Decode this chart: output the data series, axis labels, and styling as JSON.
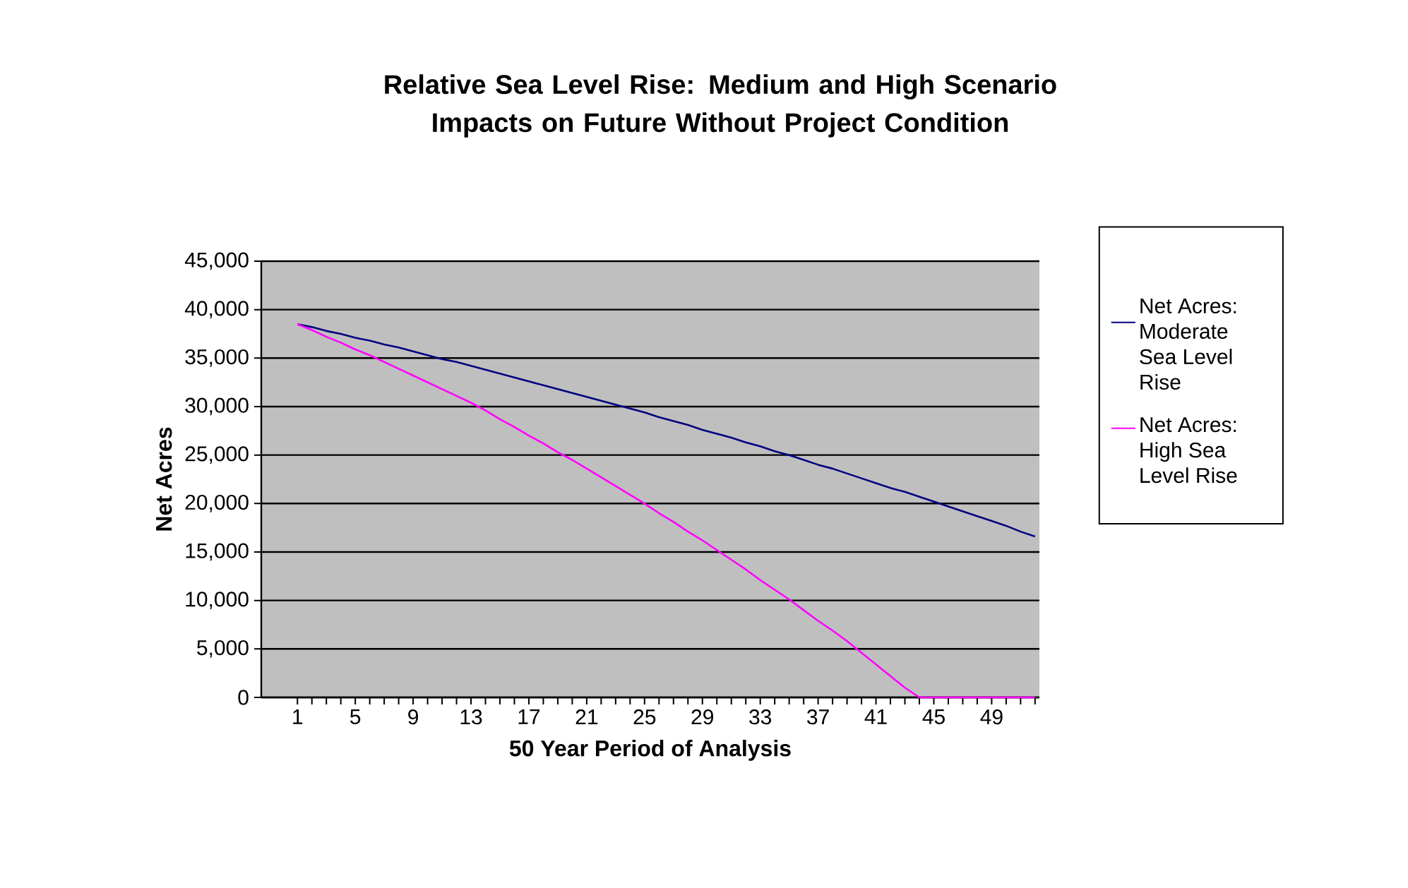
{
  "chart_data": {
    "type": "line",
    "title": "Relative Sea Level Rise: Medium and High Scenario Impacts on Future Without Project Condition",
    "xlabel": "50 Year Period of Analysis",
    "ylabel": "Net Acres",
    "categories": [
      "1",
      null,
      null,
      null,
      "5",
      null,
      null,
      null,
      "9",
      null,
      null,
      null,
      "13",
      null,
      null,
      null,
      "17",
      null,
      null,
      null,
      "21",
      null,
      null,
      null,
      "25",
      null,
      null,
      null,
      "29",
      null,
      null,
      null,
      "33",
      null,
      null,
      null,
      "37",
      null,
      null,
      null,
      "41",
      null,
      null,
      null,
      "45",
      null,
      null,
      null,
      "49",
      null,
      null,
      null
    ],
    "series": [
      {
        "name": "Net Acres: Moderate Sea Level Rise",
        "color": "#000080",
        "values": [
          38500,
          38200,
          37800,
          37500,
          37100,
          36800,
          36400,
          36100,
          35700,
          35300,
          34900,
          34600,
          34200,
          33800,
          33400,
          33000,
          32600,
          32200,
          31800,
          31400,
          31000,
          30600,
          30200,
          29800,
          29400,
          28900,
          28500,
          28100,
          27600,
          27200,
          26800,
          26300,
          25900,
          25400,
          25000,
          24500,
          24000,
          23600,
          23100,
          22600,
          22100,
          21600,
          21200,
          20700,
          20200,
          19700,
          19200,
          18700,
          18200,
          17700,
          17100,
          16600
        ]
      },
      {
        "name": "Net Acres: High Sea Level Rise",
        "color": "#ff00ff",
        "values": [
          38500,
          37900,
          37200,
          36600,
          35900,
          35300,
          34600,
          33900,
          33200,
          32500,
          31800,
          31100,
          30400,
          29600,
          28700,
          27900,
          27000,
          26200,
          25300,
          24500,
          23600,
          22700,
          21800,
          20900,
          20000,
          19000,
          18100,
          17100,
          16200,
          15200,
          14200,
          13200,
          12100,
          11100,
          10100,
          9000,
          7900,
          6900,
          5800,
          4600,
          3400,
          2200,
          1000,
          0,
          0,
          0,
          0,
          0,
          0,
          0,
          0,
          0
        ]
      }
    ],
    "ylim": [
      0,
      45000
    ],
    "yticks": [
      0,
      {
        "value": 5000,
        "label": "5,000"
      },
      {
        "value": 10000,
        "label": "10,000"
      },
      {
        "value": 15000,
        "label": "15,000"
      },
      {
        "value": 20000,
        "label": "20,000"
      },
      {
        "value": 25000,
        "label": "25,000"
      },
      {
        "value": 30000,
        "label": "30,000"
      },
      {
        "value": 35000,
        "label": "35,000"
      },
      {
        "value": 40000,
        "label": "40,000"
      },
      {
        "value": 45000,
        "label": "45,000"
      }
    ],
    "grid": "y",
    "legend": "right"
  }
}
